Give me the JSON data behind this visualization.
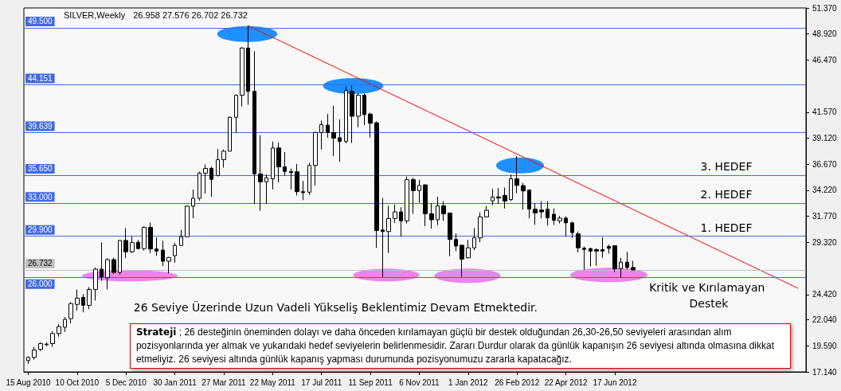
{
  "chart_data": {
    "type": "candlestick",
    "title": "SILVER,Weekly",
    "subtitle": "26.958 27.576 26.702 26.732",
    "x": [
      "2010-08-15",
      "2010-08-22",
      "2010-08-29",
      "2010-09-05",
      "2010-09-12",
      "2010-09-19",
      "2010-09-26",
      "2010-10-03",
      "2010-10-10",
      "2010-10-17",
      "2010-10-24",
      "2010-10-31",
      "2010-11-07",
      "2010-11-14",
      "2010-11-21",
      "2010-11-28",
      "2010-12-05",
      "2010-12-12",
      "2010-12-19",
      "2010-12-26",
      "2011-01-02",
      "2011-01-09",
      "2011-01-16",
      "2011-01-23",
      "2011-01-30",
      "2011-02-06",
      "2011-02-13",
      "2011-02-20",
      "2011-02-27",
      "2011-03-06",
      "2011-03-13",
      "2011-03-20",
      "2011-03-27",
      "2011-04-03",
      "2011-04-10",
      "2011-04-17",
      "2011-04-24",
      "2011-05-01",
      "2011-05-08",
      "2011-05-15",
      "2011-05-22",
      "2011-05-29",
      "2011-06-05",
      "2011-06-12",
      "2011-06-19",
      "2011-06-26",
      "2011-07-03",
      "2011-07-10",
      "2011-07-17",
      "2011-07-24",
      "2011-07-31",
      "2011-08-07",
      "2011-08-14",
      "2011-08-21",
      "2011-08-28",
      "2011-09-04",
      "2011-09-11",
      "2011-09-18",
      "2011-09-25",
      "2011-10-02",
      "2011-10-09",
      "2011-10-16",
      "2011-10-23",
      "2011-10-30",
      "2011-11-06",
      "2011-11-13",
      "2011-11-20",
      "2011-11-27",
      "2011-12-04",
      "2011-12-11",
      "2011-12-18",
      "2011-12-25",
      "2012-01-01",
      "2012-01-08",
      "2012-01-15",
      "2012-01-22",
      "2012-01-29",
      "2012-02-05",
      "2012-02-12",
      "2012-02-19",
      "2012-02-26",
      "2012-03-04",
      "2012-03-11",
      "2012-03-18",
      "2012-03-25",
      "2012-04-01",
      "2012-04-08",
      "2012-04-15",
      "2012-04-22",
      "2012-04-29",
      "2012-05-06",
      "2012-05-13",
      "2012-05-20",
      "2012-05-27",
      "2012-06-03",
      "2012-06-10",
      "2012-06-17",
      "2012-06-24",
      "2012-07-01",
      "2012-07-08"
    ],
    "ohlc": [
      [
        18.2,
        18.6,
        17.9,
        18.5
      ],
      [
        18.5,
        19.5,
        18.3,
        19.2
      ],
      [
        19.25,
        19.93,
        19.1,
        19.81
      ],
      [
        19.7,
        19.93,
        19.56,
        19.75
      ],
      [
        19.8,
        20.97,
        19.5,
        20.75
      ],
      [
        20.75,
        21.64,
        20.45,
        21.4
      ],
      [
        21.34,
        22.3,
        20.9,
        22.08
      ],
      [
        22.15,
        23.7,
        21.71,
        23.56
      ],
      [
        23.49,
        24.89,
        22.89,
        24.08
      ],
      [
        24.15,
        24.45,
        22.75,
        23.41
      ],
      [
        23.4,
        25.11,
        23.04,
        24.9
      ],
      [
        24.9,
        26.96,
        23.85,
        26.8
      ],
      [
        26.81,
        29.33,
        25.7,
        26.07
      ],
      [
        26.0,
        27.85,
        24.9,
        27.7
      ],
      [
        27.7,
        27.87,
        26.37,
        26.5
      ],
      [
        26.5,
        29.55,
        26.3,
        29.5
      ],
      [
        29.5,
        30.66,
        27.85,
        28.44
      ],
      [
        28.44,
        29.92,
        28.32,
        29.3
      ],
      [
        29.33,
        29.55,
        28.66,
        28.74
      ],
      [
        28.74,
        30.83,
        28.55,
        30.73
      ],
      [
        30.73,
        31.2,
        28.3,
        28.7
      ],
      [
        28.7,
        29.79,
        28.07,
        28.5
      ],
      [
        28.6,
        29.48,
        27.1,
        27.55
      ],
      [
        27.55,
        27.95,
        26.4,
        27.9
      ],
      [
        28.07,
        29.26,
        27.41,
        29.03
      ],
      [
        29.03,
        30.51,
        29.03,
        29.85
      ],
      [
        29.85,
        32.8,
        29.85,
        32.73
      ],
      [
        32.73,
        34.3,
        31.6,
        33.47
      ],
      [
        33.47,
        35.98,
        33.25,
        35.84
      ],
      [
        35.84,
        36.65,
        33.91,
        36.28
      ],
      [
        36.28,
        36.45,
        33.6,
        35.25
      ],
      [
        35.6,
        38.1,
        35.54,
        37.1
      ],
      [
        37.1,
        38.06,
        36.35,
        37.9
      ],
      [
        37.9,
        41.14,
        37.9,
        41.09
      ],
      [
        41.09,
        43.24,
        39.6,
        43.16
      ],
      [
        43.16,
        47.67,
        42.12,
        47.6
      ],
      [
        47.6,
        49.7,
        42.27,
        43.53
      ],
      [
        43.53,
        47.3,
        32.95,
        35.76
      ],
      [
        35.76,
        39.4,
        32.29,
        35.02
      ],
      [
        35.02,
        35.71,
        32.95,
        35.4
      ],
      [
        35.3,
        38.8,
        34.3,
        38.2
      ],
      [
        38.2,
        38.72,
        34.95,
        36.43
      ],
      [
        36.43,
        37.81,
        35.59,
        35.99
      ],
      [
        35.98,
        36.26,
        34.3,
        35.88
      ],
      [
        35.96,
        36.7,
        33.74,
        34.09
      ],
      [
        34.09,
        35.1,
        33.3,
        34.0
      ],
      [
        34.04,
        36.82,
        33.79,
        36.56
      ],
      [
        36.56,
        39.71,
        34.68,
        39.66
      ],
      [
        39.66,
        40.77,
        38.06,
        40.4
      ],
      [
        40.35,
        41.4,
        39.17,
        39.66
      ],
      [
        39.66,
        42.17,
        37.44,
        39.12
      ],
      [
        39.17,
        40.89,
        36.9,
        38.82
      ],
      [
        38.82,
        43.97,
        38.63,
        43.6
      ],
      [
        43.53,
        44.05,
        38.67,
        41.19
      ],
      [
        41.19,
        43.36,
        40.15,
        43.16
      ],
      [
        43.16,
        43.31,
        40.35,
        41.34
      ],
      [
        41.39,
        41.51,
        39.17,
        40.52
      ],
      [
        40.57,
        40.72,
        28.81,
        30.44
      ],
      [
        30.49,
        33.5,
        26.05,
        30.34
      ],
      [
        30.34,
        32.76,
        28.32,
        31.57
      ],
      [
        31.57,
        32.88,
        31.16,
        32.19
      ],
      [
        32.19,
        32.63,
        29.85,
        31.35
      ],
      [
        31.35,
        35.52,
        31.1,
        35.22
      ],
      [
        35.22,
        35.42,
        32.02,
        34.19
      ],
      [
        34.19,
        35.22,
        33.05,
        34.68
      ],
      [
        34.73,
        34.78,
        30.83,
        32.02
      ],
      [
        32.02,
        33.0,
        30.61,
        31.45
      ],
      [
        31.45,
        33.62,
        30.95,
        32.76
      ],
      [
        32.76,
        33.18,
        31.35,
        32.02
      ],
      [
        32.07,
        32.14,
        28.02,
        29.6
      ],
      [
        29.6,
        30.16,
        28.5,
        28.98
      ],
      [
        29.05,
        29.11,
        26.1,
        27.75
      ],
      [
        27.87,
        29.55,
        27.83,
        28.81
      ],
      [
        28.81,
        30.66,
        28.59,
        29.75
      ],
      [
        29.75,
        32.14,
        29.35,
        31.72
      ],
      [
        31.72,
        32.76,
        31.65,
        32.34
      ],
      [
        33.23,
        34.36,
        32.83,
        33.59
      ],
      [
        33.6,
        34.43,
        32.95,
        33.5
      ],
      [
        33.74,
        34.48,
        32.51,
        33.2
      ],
      [
        33.35,
        35.71,
        33.2,
        35.3
      ],
      [
        35.3,
        37.44,
        33.94,
        34.68
      ],
      [
        34.66,
        34.9,
        32.39,
        34.16
      ],
      [
        34.24,
        34.28,
        31.57,
        32.46
      ],
      [
        32.44,
        33.0,
        30.98,
        32.09
      ],
      [
        32.36,
        33.2,
        31.57,
        32.19
      ],
      [
        32.44,
        33.2,
        30.9,
        31.64
      ],
      [
        31.97,
        32.51,
        30.96,
        31.4
      ],
      [
        31.35,
        31.82,
        31.1,
        31.6
      ],
      [
        31.6,
        31.77,
        29.85,
        31.16
      ],
      [
        31.16,
        31.27,
        29.75,
        30.24
      ],
      [
        30.12,
        30.34,
        28.39,
        28.81
      ],
      [
        28.76,
        28.94,
        26.72,
        28.66
      ],
      [
        28.74,
        28.81,
        27.04,
        28.5
      ],
      [
        28.64,
        28.76,
        27.13,
        28.5
      ],
      [
        28.64,
        29.8,
        27.87,
        28.5
      ],
      [
        28.94,
        29.11,
        28.27,
        28.76
      ],
      [
        29.01,
        29.05,
        26.54,
        26.84
      ],
      [
        26.84,
        27.87,
        26.02,
        27.46
      ],
      [
        27.46,
        28.44,
        26.79,
        26.96
      ],
      [
        26.958,
        27.576,
        26.702,
        26.732
      ]
    ],
    "series": [
      {
        "type": "line",
        "color": "#ff0000",
        "x": [
          "2011-04-24",
          "2013-01-13"
        ],
        "values": [
          49.7,
          25.0
        ]
      }
    ],
    "xlim": [
      "2010-08-10",
      "2013-01-22"
    ],
    "xticks": [
      {
        "value": "2010-08-15",
        "label": "15 Aug 2010"
      },
      {
        "value": "2010-10-10",
        "label": "10 Oct 2010"
      },
      {
        "value": "2010-12-05",
        "label": "5 Dec 2010"
      },
      {
        "value": "2011-01-30",
        "label": "30 Jan 2011"
      },
      {
        "value": "2011-03-27",
        "label": "27 Mar 2011"
      },
      {
        "value": "2011-05-22",
        "label": "22 May 2011"
      },
      {
        "value": "2011-07-17",
        "label": "17 Jul 2011"
      },
      {
        "value": "2011-09-11",
        "label": "11 Sep 2011"
      },
      {
        "value": "2011-11-06",
        "label": "6 Nov 2011"
      },
      {
        "value": "2012-01-01",
        "label": "1 Jan 2012"
      },
      {
        "value": "2012-02-26",
        "label": "26 Feb 2012"
      },
      {
        "value": "2012-04-22",
        "label": "22 Apr 2012"
      },
      {
        "value": "2012-06-17",
        "label": "17 Jun 2012"
      }
    ],
    "ylim": [
      17.14,
      51.37
    ],
    "yticks": [
      {
        "value": 51.37,
        "label": "51.370"
      },
      {
        "value": 48.92,
        "label": "48.920"
      },
      {
        "value": 46.47,
        "label": "46.470"
      },
      {
        "value": 41.57,
        "label": "41.570"
      },
      {
        "value": 39.12,
        "label": "39.120"
      },
      {
        "value": 36.67,
        "label": "36.670"
      },
      {
        "value": 34.22,
        "label": "34.220"
      },
      {
        "value": 31.77,
        "label": "31.770"
      },
      {
        "value": 29.32,
        "label": "29.320"
      },
      {
        "value": 24.42,
        "label": "24.420"
      },
      {
        "value": 22.04,
        "label": "22.040"
      },
      {
        "value": 19.59,
        "label": "19.590"
      },
      {
        "value": 17.14,
        "label": "17.140"
      }
    ],
    "ref_lines": [
      {
        "axis": "y",
        "value": 49.5,
        "label": "49.500",
        "color": "#4169e1"
      },
      {
        "axis": "y",
        "value": 44.151,
        "label": "44.151",
        "color": "#4169e1"
      },
      {
        "axis": "y",
        "value": 39.639,
        "label": "39.639",
        "color": "#4169e1"
      },
      {
        "axis": "y",
        "value": 35.65,
        "label": "35.650",
        "color": "#4169e1"
      },
      {
        "axis": "y",
        "value": 33.0,
        "label": "33.000",
        "color": "#4169e1"
      },
      {
        "axis": "y",
        "value": 29.9,
        "label": "29.900",
        "color": "#4169e1"
      },
      {
        "axis": "y",
        "value": 26.732,
        "label": "26.732",
        "color": "#c0c0c0"
      },
      {
        "axis": "y",
        "value": 26.0,
        "label": "26.000",
        "color": "#4169e1"
      }
    ],
    "annotations": [
      "26 Seviye Üzerinde Uzun Vadeli Yükseliş Beklentimiz Devam Etmektedir.",
      "Strateji ; 26 desteğinin öneminden dolayı ve daha önceden kırılamayan güçlü bir destek olduğundan 26,30-26,50 seviyeleri arasından alım pozisyonlarında yer almak ve yukarıdaki hedef seviyelerin belirlenmesidir. Zararı Durdur olarak da günlük kapanışın 26 seviyesi altında olmasına dikkat etmeliyiz. 26 seviyesi altında günlük kapanış yapması durumunda pozisyonumuzu zararla kapatacağız.",
      {
        "text": "3. HEDEF",
        "y": 35.65
      },
      {
        "text": "2. HEDEF",
        "y": 33.0
      },
      {
        "text": "1. HEDEF",
        "y": 29.9
      },
      {
        "text": "Kritik ve Kırılamayan Destek",
        "y": 26.0
      }
    ]
  }
}
